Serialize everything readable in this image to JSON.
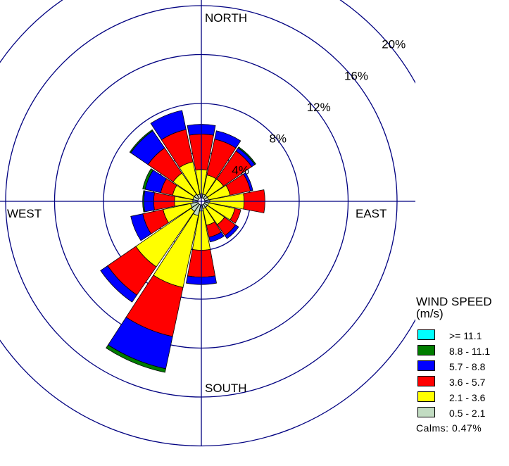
{
  "chart_data": {
    "type": "wind_rose",
    "directions": [
      "N",
      "NNE",
      "NE",
      "ENE",
      "E",
      "ESE",
      "SE",
      "SSE",
      "S",
      "SSW",
      "SW",
      "WSW",
      "W",
      "WNW",
      "NW",
      "NNW"
    ],
    "direction_labels": {
      "north": "NORTH",
      "east": "EAST",
      "south": "SOUTH",
      "west": "WEST"
    },
    "radial_ticks": [
      4,
      8,
      12,
      16,
      20
    ],
    "radial_tick_labels": [
      "4%",
      "8%",
      "12%",
      "16%",
      "20%"
    ],
    "radial_max": 20,
    "units": "%",
    "legend": {
      "title": "WIND SPEED",
      "unit": "(m/s)",
      "placement": "bottom-right"
    },
    "bins": [
      {
        "label": "0.5 - 2.1",
        "color": "#c2dcc2"
      },
      {
        "label": "2.1 - 3.6",
        "color": "#ffff00"
      },
      {
        "label": "3.6 - 5.7",
        "color": "#ff0000"
      },
      {
        "label": "5.7 - 8.8",
        "color": "#0000ff"
      },
      {
        "label": "8.8 - 11.1",
        "color": "#007d00"
      },
      {
        "label": ">= 11.1",
        "color": "#00ffff"
      }
    ],
    "legend_order": [
      ">= 11.1",
      "8.8 - 11.1",
      "5.7 - 8.8",
      "3.6 - 5.7",
      "2.1 - 3.6",
      "0.5 - 2.1"
    ],
    "cumulative_percent": [
      [
        0.6,
        2.6,
        5.5,
        6.3,
        6.3,
        6.3
      ],
      [
        0.6,
        2.2,
        5.2,
        5.9,
        5.9,
        5.9
      ],
      [
        0.6,
        2.2,
        5.0,
        5.3,
        5.4,
        5.4
      ],
      [
        0.6,
        2.4,
        4.1,
        4.3,
        4.3,
        4.3
      ],
      [
        0.7,
        3.5,
        5.2,
        5.2,
        5.2,
        5.2
      ],
      [
        0.6,
        2.8,
        3.3,
        3.3,
        3.3,
        3.3
      ],
      [
        0.6,
        2.3,
        3.4,
        3.7,
        3.7,
        3.7
      ],
      [
        0.6,
        2.0,
        3.0,
        3.4,
        3.4,
        3.4
      ],
      [
        0.8,
        4.0,
        6.2,
        6.8,
        6.8,
        6.8
      ],
      [
        1.2,
        7.2,
        11.3,
        14.0,
        14.3,
        14.3
      ],
      [
        1.0,
        6.5,
        9.3,
        10.0,
        10.0,
        10.0
      ],
      [
        0.9,
        3.2,
        4.9,
        5.9,
        5.9,
        5.9
      ],
      [
        0.7,
        2.2,
        3.9,
        4.7,
        4.8,
        4.8
      ],
      [
        0.7,
        2.4,
        3.4,
        4.7,
        4.9,
        4.9
      ],
      [
        0.7,
        2.8,
        5.3,
        7.0,
        7.1,
        7.1
      ],
      [
        0.6,
        3.3,
        6.0,
        7.6,
        7.6,
        7.6
      ]
    ],
    "calms": "Calms: 0.47%",
    "grid": true
  }
}
